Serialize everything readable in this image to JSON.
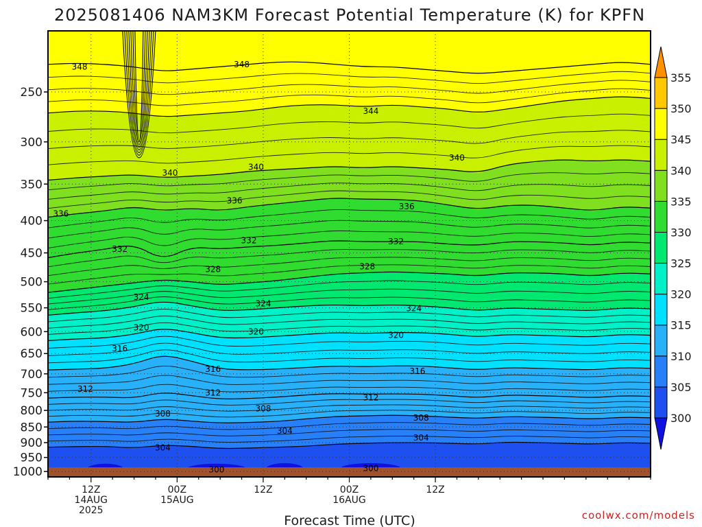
{
  "chart_data": {
    "type": "heatmap",
    "title": "2025081406 NAM3KM Forecast Potential Temperature (K) for KPFN",
    "xlabel": "Forecast Time (UTC)",
    "ylabel": "",
    "y_axis": {
      "scale": "log",
      "reversed": true,
      "range": [
        200,
        1020
      ],
      "ticks": [
        250,
        300,
        350,
        400,
        450,
        500,
        550,
        600,
        650,
        700,
        750,
        800,
        850,
        900,
        950,
        1000
      ],
      "tick_labels": [
        "250",
        "300",
        "350",
        "400",
        "450",
        "500",
        "550",
        "600",
        "650",
        "700",
        "750",
        "800",
        "850",
        "900",
        "950",
        "1000"
      ]
    },
    "x_axis": {
      "range_hours": [
        0,
        84
      ],
      "ticks": [
        {
          "hour": 6,
          "lines": [
            "12Z",
            "14AUG",
            "2025"
          ]
        },
        {
          "hour": 18,
          "lines": [
            "00Z",
            "15AUG"
          ]
        },
        {
          "hour": 30,
          "lines": [
            "12Z"
          ]
        },
        {
          "hour": 42,
          "lines": [
            "00Z",
            "16AUG"
          ]
        },
        {
          "hour": 54,
          "lines": [
            "12Z"
          ]
        }
      ]
    },
    "grid": true,
    "colorbar": {
      "position": "right",
      "levels": [
        300,
        305,
        310,
        315,
        320,
        325,
        330,
        335,
        340,
        345,
        350,
        355
      ],
      "tick_labels": [
        "300",
        "305",
        "310",
        "315",
        "320",
        "325",
        "330",
        "335",
        "340",
        "345",
        "350",
        "355"
      ],
      "colors": [
        "#1010e0",
        "#1e50f0",
        "#2880f8",
        "#28b0f8",
        "#00e0ff",
        "#00f0c8",
        "#00e870",
        "#30dc30",
        "#80e020",
        "#c8f000",
        "#ffff00",
        "#ffc800",
        "#ff9000"
      ]
    },
    "contour_interval": 4,
    "contour_labels": [
      {
        "value": "348",
        "hour": 4.4,
        "p": 228
      },
      {
        "value": "348",
        "hour": 27,
        "p": 226
      },
      {
        "value": "344",
        "hour": 45,
        "p": 268
      },
      {
        "value": "340",
        "hour": 17,
        "p": 336
      },
      {
        "value": "340",
        "hour": 29,
        "p": 329
      },
      {
        "value": "340",
        "hour": 57,
        "p": 318
      },
      {
        "value": "336",
        "hour": 1.8,
        "p": 390
      },
      {
        "value": "336",
        "hour": 26,
        "p": 372
      },
      {
        "value": "336",
        "hour": 50,
        "p": 380
      },
      {
        "value": "332",
        "hour": 10,
        "p": 444
      },
      {
        "value": "332",
        "hour": 28,
        "p": 430
      },
      {
        "value": "332",
        "hour": 48.5,
        "p": 432
      },
      {
        "value": "328",
        "hour": 23,
        "p": 478
      },
      {
        "value": "328",
        "hour": 44.5,
        "p": 473
      },
      {
        "value": "324",
        "hour": 13,
        "p": 529
      },
      {
        "value": "324",
        "hour": 30,
        "p": 542
      },
      {
        "value": "324",
        "hour": 51,
        "p": 551
      },
      {
        "value": "320",
        "hour": 13,
        "p": 591
      },
      {
        "value": "320",
        "hour": 29,
        "p": 600
      },
      {
        "value": "320",
        "hour": 48.5,
        "p": 608
      },
      {
        "value": "316",
        "hour": 10,
        "p": 638
      },
      {
        "value": "316",
        "hour": 23,
        "p": 688
      },
      {
        "value": "316",
        "hour": 51.5,
        "p": 693
      },
      {
        "value": "312",
        "hour": 5.2,
        "p": 740
      },
      {
        "value": "312",
        "hour": 23,
        "p": 750
      },
      {
        "value": "312",
        "hour": 45,
        "p": 764
      },
      {
        "value": "308",
        "hour": 16,
        "p": 810
      },
      {
        "value": "308",
        "hour": 30,
        "p": 795
      },
      {
        "value": "308",
        "hour": 52,
        "p": 822
      },
      {
        "value": "304",
        "hour": 16,
        "p": 917
      },
      {
        "value": "304",
        "hour": 33,
        "p": 862
      },
      {
        "value": "304",
        "hour": 52,
        "p": 884
      },
      {
        "value": "300",
        "hour": 23.5,
        "p": 993
      },
      {
        "value": "300",
        "hour": 45,
        "p": 988
      }
    ],
    "series": [
      {
        "theta": 304,
        "p": [
          915,
          913,
          912,
          918,
          908,
          912,
          920,
          918,
          915,
          912,
          905,
          902,
          900,
          900,
          902,
          905,
          898,
          900,
          902,
          905,
          900,
          902
        ]
      },
      {
        "theta": 308,
        "p": [
          835,
          832,
          833,
          836,
          825,
          832,
          838,
          836,
          833,
          825,
          818,
          816,
          814,
          816,
          820,
          824,
          818,
          820,
          822,
          826,
          820,
          822
        ]
      },
      {
        "theta": 312,
        "p": [
          765,
          762,
          762,
          765,
          748,
          758,
          768,
          766,
          762,
          756,
          752,
          754,
          753,
          754,
          758,
          764,
          756,
          758,
          760,
          764,
          758,
          760
        ]
      },
      {
        "theta": 316,
        "p": [
          690,
          688,
          686,
          675,
          652,
          668,
          688,
          690,
          688,
          684,
          680,
          682,
          680,
          680,
          685,
          690,
          684,
          686,
          688,
          690,
          684,
          686
        ]
      },
      {
        "theta": 320,
        "p": [
          620,
          616,
          614,
          606,
          592,
          602,
          614,
          614,
          610,
          606,
          602,
          604,
          602,
          602,
          606,
          612,
          606,
          608,
          610,
          612,
          606,
          608
        ]
      },
      {
        "theta": 324,
        "p": [
          565,
          560,
          556,
          548,
          536,
          546,
          556,
          554,
          550,
          546,
          544,
          546,
          544,
          546,
          550,
          556,
          550,
          552,
          554,
          556,
          550,
          552
        ]
      },
      {
        "theta": 328,
        "p": [
          520,
          514,
          508,
          502,
          496,
          500,
          506,
          502,
          498,
          492,
          486,
          484,
          482,
          484,
          486,
          490,
          484,
          484,
          486,
          490,
          484,
          486
        ]
      },
      {
        "theta": 332,
        "p": [
          458,
          450,
          444,
          436,
          462,
          440,
          444,
          440,
          438,
          434,
          430,
          432,
          432,
          432,
          436,
          438,
          432,
          432,
          434,
          438,
          432,
          434
        ]
      },
      {
        "theta": 336,
        "p": [
          395,
          390,
          386,
          380,
          386,
          382,
          386,
          380,
          376,
          372,
          368,
          370,
          370,
          372,
          378,
          384,
          378,
          378,
          382,
          386,
          380,
          382
        ]
      },
      {
        "theta": 340,
        "p": [
          345,
          342,
          340,
          338,
          342,
          340,
          338,
          334,
          332,
          330,
          328,
          330,
          328,
          330,
          332,
          336,
          326,
          322,
          320,
          322,
          320,
          322
        ]
      },
      {
        "theta": 344,
        "p": [
          270,
          268,
          268,
          270,
          274,
          272,
          270,
          268,
          264,
          262,
          262,
          264,
          262,
          264,
          266,
          270,
          266,
          262,
          258,
          256,
          254,
          256
        ]
      },
      {
        "theta": 348,
        "p": [
          226,
          225,
          226,
          228,
          232,
          230,
          228,
          226,
          224,
          224,
          226,
          228,
          228,
          230,
          232,
          234,
          232,
          230,
          228,
          226,
          224,
          226
        ]
      }
    ],
    "series_hours": [
      0,
      4,
      8,
      12,
      16,
      20,
      24,
      28,
      32,
      36,
      40,
      44,
      48,
      52,
      56,
      60,
      64,
      68,
      72,
      76,
      80,
      84
    ]
  },
  "credit": "coolwx.com/models"
}
